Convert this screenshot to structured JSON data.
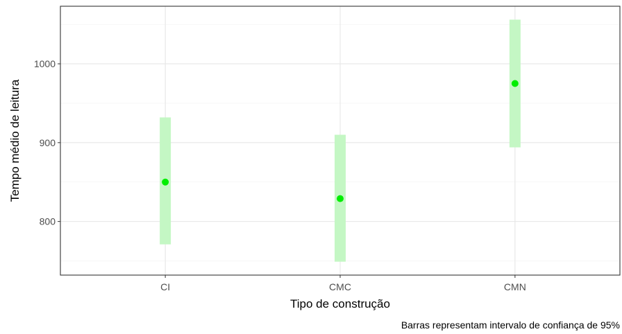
{
  "chart_data": {
    "type": "scatter",
    "title": "",
    "xlabel": "Tipo de construção",
    "ylabel": "Tempo médio de leitura",
    "caption": "Barras representam intervalo de confiança de 95%",
    "categories": [
      "CI",
      "CMC",
      "CMN"
    ],
    "points": [
      {
        "category": "CI",
        "mean": 850,
        "lower": 771,
        "upper": 932
      },
      {
        "category": "CMC",
        "mean": 829,
        "lower": 749,
        "upper": 910
      },
      {
        "category": "CMN",
        "mean": 975,
        "lower": 894,
        "upper": 1056
      }
    ],
    "y_ticks": [
      800,
      900,
      1000
    ],
    "ylim": [
      732,
      1073
    ],
    "grid": true,
    "colors": {
      "point": "#00ee00",
      "error_bar": "#c4f7c4",
      "grid_major": "#e6e6e6",
      "grid_minor": "#f2f2f2",
      "panel_border": "#333333"
    }
  }
}
